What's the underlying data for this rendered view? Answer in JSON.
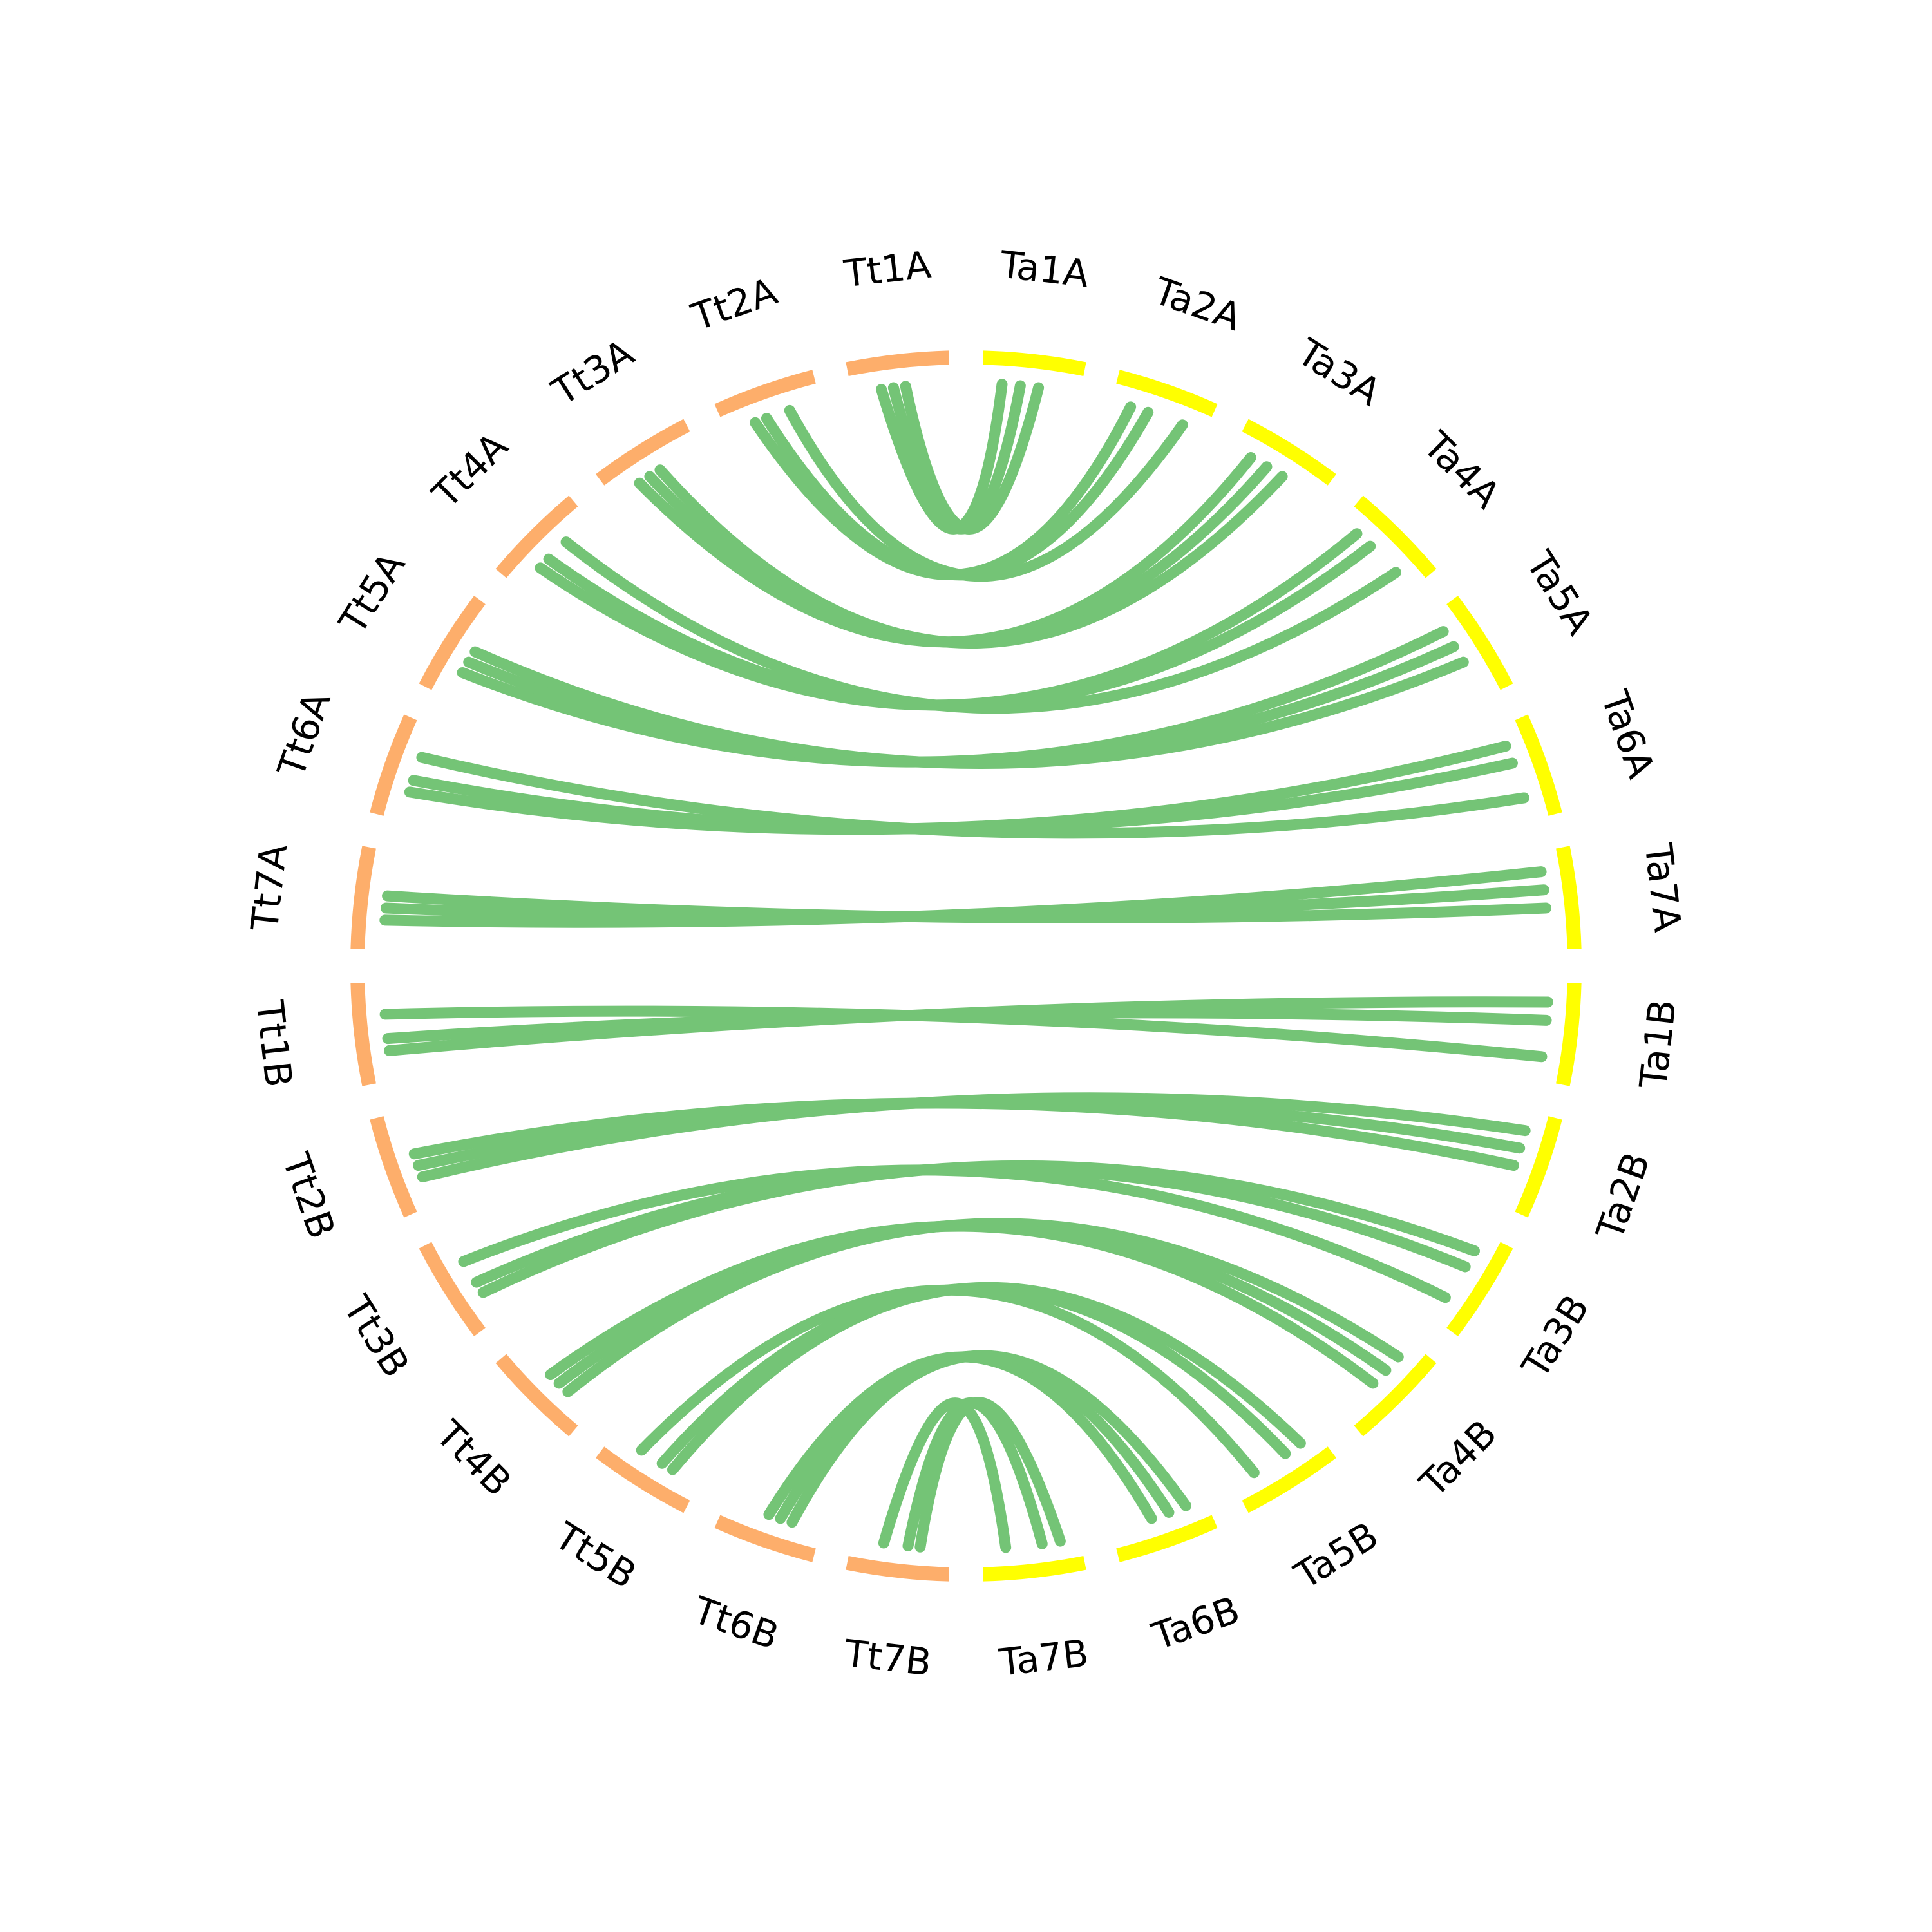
{
  "segments": {
    "ta": [
      "Ta1A",
      "Ta2A",
      "Ta3A",
      "Ta4A",
      "Ta5A",
      "Ta6A",
      "Ta7A",
      "Ta1B",
      "Ta2B",
      "Ta3B",
      "Ta4B",
      "Ta5B",
      "Ta6B",
      "Ta7B"
    ],
    "tt": [
      "Tt1A",
      "Tt2A",
      "Tt3A",
      "Tt4A",
      "Tt5A",
      "Tt6A",
      "Tt7A",
      "Tt1B",
      "Tt2B",
      "Tt3B",
      "Tt4B",
      "Tt5B",
      "Tt6B",
      "Tt7B"
    ]
  }
}
